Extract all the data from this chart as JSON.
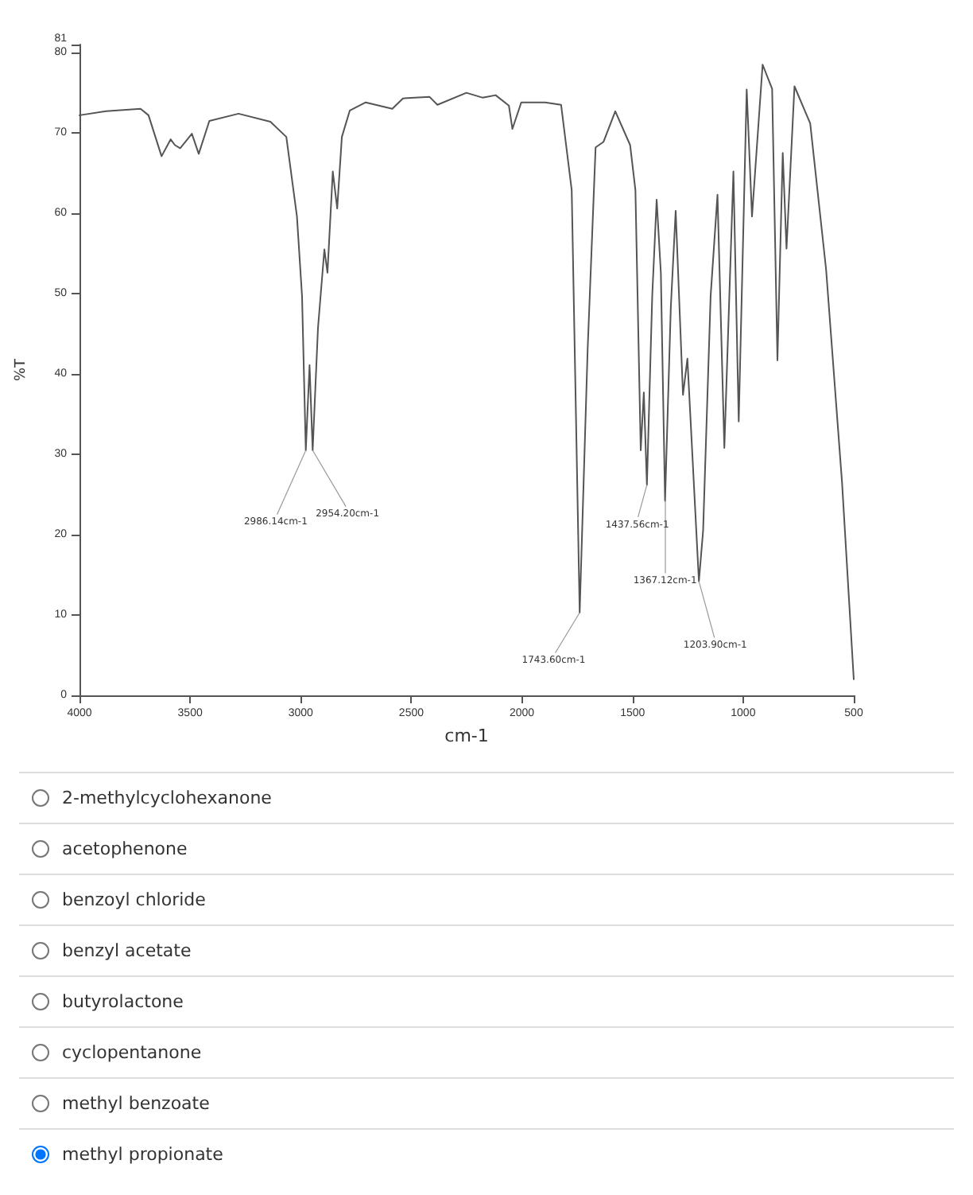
{
  "chart_data": {
    "type": "line",
    "xlabel": "cm-1",
    "ylabel": "%T",
    "x": [
      4000,
      3880,
      3724,
      3688,
      3629,
      3588,
      3569,
      3545,
      3492,
      3461,
      3413,
      3281,
      3137,
      3065,
      3017,
      2994,
      2977,
      2960,
      2946,
      2922,
      2893,
      2879,
      2855,
      2835,
      2814,
      2778,
      2706,
      2586,
      2538,
      2418,
      2382,
      2251,
      2179,
      2158,
      2119,
      2059,
      2043,
      2003,
      1895,
      1823,
      1775,
      1739,
      1703,
      1667,
      1631,
      1578,
      1511,
      1487,
      1463,
      1449,
      1435,
      1411,
      1391,
      1372,
      1353,
      1327,
      1305,
      1272,
      1252,
      1200,
      1181,
      1147,
      1116,
      1085,
      1044,
      1020,
      984,
      960,
      912,
      869,
      845,
      821,
      804,
      768,
      697,
      625,
      553,
      500
    ],
    "series": [
      {
        "color": "#555555",
        "values": [
          72.2,
          72.7,
          73.0,
          72.2,
          67.1,
          69.2,
          68.5,
          68.1,
          69.9,
          67.4,
          71.5,
          72.4,
          71.4,
          69.5,
          59.6,
          49.7,
          30.5,
          41.1,
          30.5,
          45.7,
          55.5,
          52.6,
          65.2,
          60.6,
          69.5,
          72.8,
          73.8,
          73.0,
          74.3,
          74.5,
          73.5,
          75.0,
          74.4,
          74.5,
          74.7,
          73.4,
          70.5,
          73.8,
          73.8,
          73.5,
          62.9,
          10.3,
          43.0,
          68.2,
          68.9,
          72.7,
          68.5,
          62.9,
          30.5,
          37.7,
          26.2,
          49.7,
          61.7,
          52.6,
          24.2,
          48.3,
          60.3,
          37.4,
          41.9,
          14.2,
          20.5,
          49.7,
          62.3,
          30.8,
          65.2,
          34.1,
          75.4,
          59.6,
          78.5,
          75.5,
          41.7,
          67.5,
          55.6,
          75.8,
          71.2,
          53.0,
          26.5,
          2.0
        ]
      }
    ],
    "xlim": [
      4000,
      500
    ],
    "xticks": [
      4000,
      3500,
      3000,
      2500,
      2000,
      1500,
      1000,
      500
    ],
    "ylim": [
      0,
      81
    ],
    "yticks": [
      0,
      10,
      20,
      30,
      40,
      50,
      60,
      70,
      80,
      81
    ],
    "grid": false,
    "marker": "none",
    "line_style": "solid",
    "annotations": [
      {
        "text": "2986.14cm-1",
        "x": 2977,
        "y": 30.5
      },
      {
        "text": "2954.20cm-1",
        "x": 2946,
        "y": 30.5
      },
      {
        "text": "1743.60cm-1",
        "x": 1739,
        "y": 10.3
      },
      {
        "text": "1437.56cm-1",
        "x": 1435,
        "y": 26.2
      },
      {
        "text": "1367.12cm-1",
        "x": 1353,
        "y": 24.2
      },
      {
        "text": "1203.90cm-1",
        "x": 1200,
        "y": 14.2
      },
      "2-methylcyclohexanone",
      "acetophenone",
      "benzoyl chloride",
      "benzyl acetate",
      "butyrolactone",
      "cyclopentanone",
      "methyl benzoate",
      "methyl propionate"
    ]
  }
}
